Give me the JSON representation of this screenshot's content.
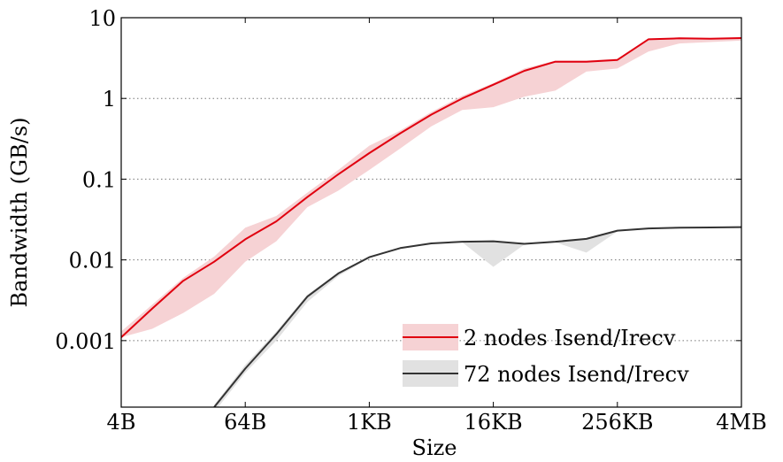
{
  "chart_data": {
    "type": "line",
    "xlabel": "Size",
    "ylabel": "Bandwidth (GB/s)",
    "y_scale": "log",
    "x_scale": "log2",
    "ylim": [
      0.00015,
      10
    ],
    "grid": "horizontal-dotted",
    "legend_position": "bottom-right",
    "x_ticks": [
      {
        "label": "4B",
        "bytes": 4
      },
      {
        "label": "64B",
        "bytes": 64
      },
      {
        "label": "1KB",
        "bytes": 1024
      },
      {
        "label": "16KB",
        "bytes": 16384
      },
      {
        "label": "256KB",
        "bytes": 262144
      },
      {
        "label": "4MB",
        "bytes": 4194304
      }
    ],
    "y_ticks": [
      {
        "label": "10",
        "value": 10
      },
      {
        "label": "1",
        "value": 1
      },
      {
        "label": "0.1",
        "value": 0.1
      },
      {
        "label": "0.01",
        "value": 0.01
      },
      {
        "label": "0.001",
        "value": 0.001
      }
    ],
    "x_bytes": [
      4,
      8,
      16,
      32,
      64,
      128,
      256,
      512,
      1024,
      2048,
      4096,
      8192,
      16384,
      32768,
      65536,
      131072,
      262144,
      524288,
      1048576,
      2097152,
      4194304
    ],
    "series": [
      {
        "name": "2 nodes Isend/Irecv",
        "color": "#e0000f",
        "band_color": "#f6d2d4",
        "values": [
          0.0011,
          0.0025,
          0.0055,
          0.0095,
          0.018,
          0.03,
          0.06,
          0.115,
          0.21,
          0.37,
          0.63,
          1.0,
          1.48,
          2.2,
          2.85,
          2.85,
          3.0,
          5.4,
          5.55,
          5.5,
          5.6
        ],
        "band_lower": [
          0.0011,
          0.0014,
          0.0022,
          0.0038,
          0.0095,
          0.017,
          0.045,
          0.072,
          0.13,
          0.24,
          0.45,
          0.72,
          0.78,
          1.05,
          1.25,
          2.15,
          2.35,
          3.8,
          4.8,
          5.0,
          5.2
        ],
        "band_upper": [
          0.0013,
          0.0028,
          0.006,
          0.011,
          0.025,
          0.035,
          0.068,
          0.13,
          0.26,
          0.4,
          0.68,
          1.08,
          1.55,
          2.35,
          2.95,
          2.95,
          3.1,
          5.5,
          5.6,
          5.6,
          5.7
        ]
      },
      {
        "name": "72 nodes Isend/Irecv",
        "color": "#333333",
        "band_color": "#e1e1e1",
        "values": [
          null,
          null,
          null,
          0.00015,
          0.00045,
          0.0012,
          0.0035,
          0.0068,
          0.0108,
          0.014,
          0.016,
          0.0168,
          0.017,
          0.0158,
          0.0168,
          0.0182,
          0.023,
          0.0245,
          0.025,
          0.0252,
          0.0255
        ],
        "band_lower": [
          null,
          null,
          null,
          0.00013,
          0.0004,
          0.001,
          0.003,
          0.0063,
          0.0105,
          0.0138,
          0.0158,
          0.0165,
          0.0082,
          0.0155,
          0.0165,
          0.0123,
          0.0225,
          0.024,
          0.0245,
          0.025,
          0.0252
        ],
        "band_upper": [
          null,
          null,
          null,
          0.00016,
          0.0005,
          0.0013,
          0.0037,
          0.007,
          0.0111,
          0.0142,
          0.0163,
          0.0171,
          0.0174,
          0.016,
          0.0171,
          0.0186,
          0.0234,
          0.0248,
          0.0253,
          0.0255,
          0.0258
        ]
      }
    ]
  }
}
